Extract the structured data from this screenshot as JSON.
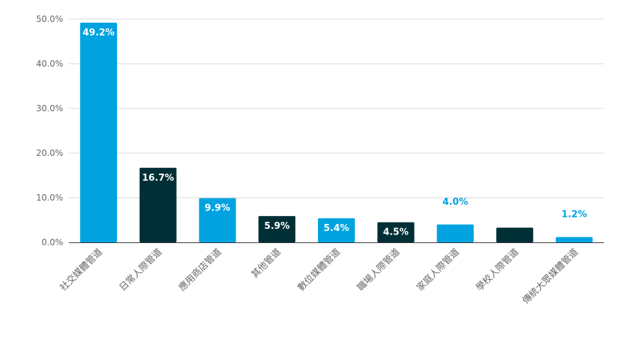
{
  "colors": {
    "blue": "#00a3e0",
    "dark": "#002f36",
    "grid": "#d9d9d9",
    "axis": "#333333",
    "tick_text": "#666666"
  },
  "chart_data": {
    "type": "bar",
    "title": "",
    "xlabel": "",
    "ylabel": "",
    "ylim": [
      0,
      50
    ],
    "yticks": [
      "0.0%",
      "10.0%",
      "20.0%",
      "30.0%",
      "40.0%",
      "50.0%"
    ],
    "ytick_values": [
      0,
      10,
      20,
      30,
      40,
      50
    ],
    "grid": true,
    "categories": [
      "社交媒體管道",
      "日常人際管道",
      "應用商店管道",
      "其他管道",
      "數位媒體管道",
      "職場人際管道",
      "家庭人際管道",
      "學校人際管道",
      "傳統大眾媒體管道"
    ],
    "values": [
      49.2,
      16.7,
      9.9,
      5.9,
      5.4,
      4.5,
      4.0,
      3.3,
      1.2
    ],
    "data_labels": [
      "49.2%",
      "16.7%",
      "9.9%",
      "5.9%",
      "5.4%",
      "4.5%",
      "4.0%",
      "",
      "1.2%"
    ],
    "bar_colors": [
      "blue",
      "dark",
      "blue",
      "dark",
      "blue",
      "dark",
      "blue",
      "dark",
      "blue"
    ]
  }
}
